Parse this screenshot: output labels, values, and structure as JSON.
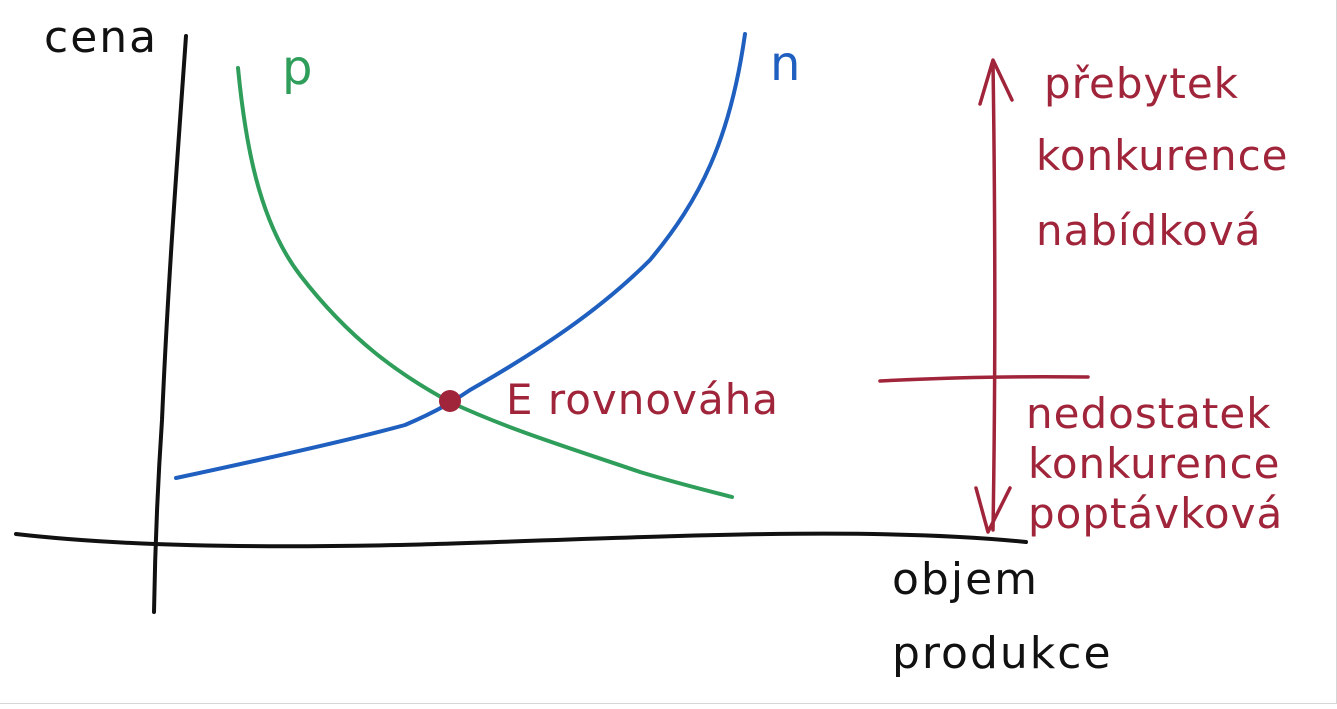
{
  "colors": {
    "axes": "#111111",
    "demand": "#2f9e5b",
    "supply": "#1f5fbf",
    "annotation": "#a0243a"
  },
  "axes": {
    "y_label": "cena",
    "x_label_line1": "objem",
    "x_label_line2": "produkce"
  },
  "curves": {
    "demand_label": "p",
    "supply_label": "n"
  },
  "equilibrium": {
    "label": "E rovnováha"
  },
  "surplus": {
    "line1": "přebytek",
    "line2": "konkurence",
    "line3": "nabídková"
  },
  "shortage": {
    "line1": "nedostatek",
    "line2": "konkurence",
    "line3": "poptávková"
  }
}
